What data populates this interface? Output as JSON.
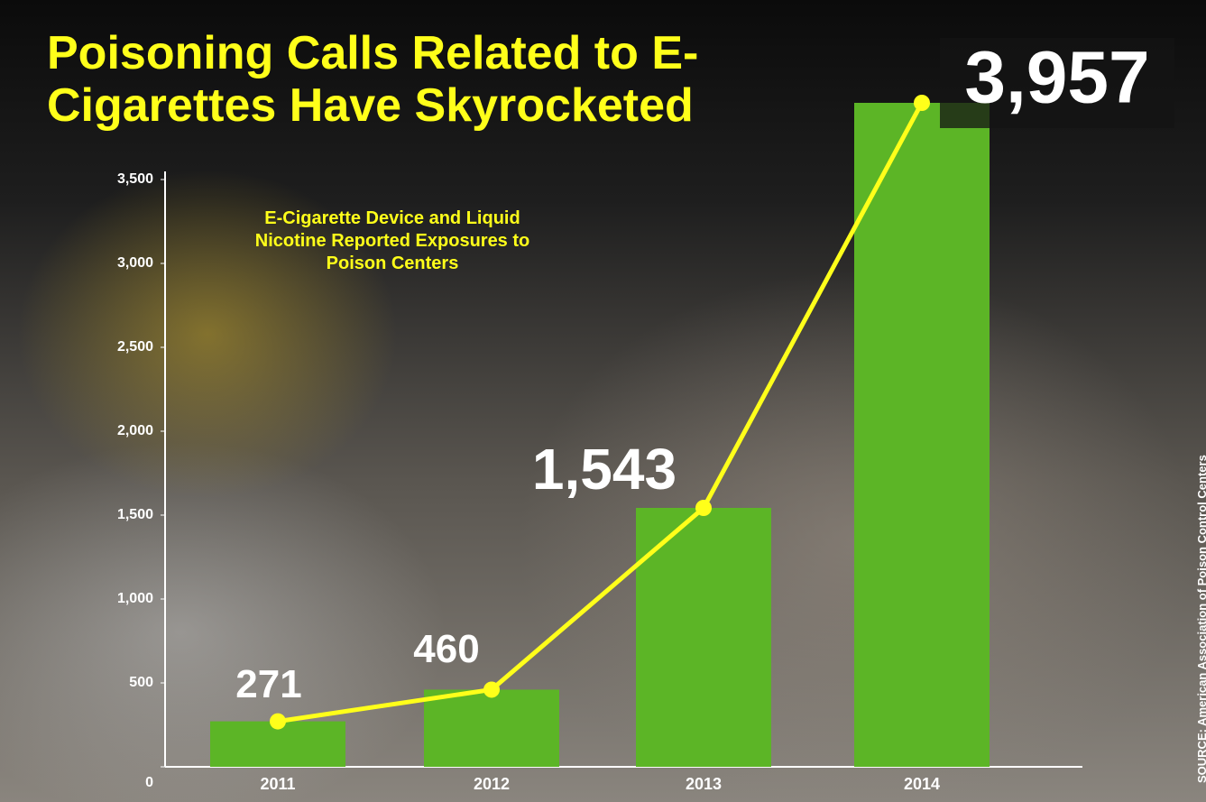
{
  "chart_data": {
    "type": "bar",
    "title": "Poisoning Calls Related to E-Cigarettes Have Skyrocketed",
    "subtitle": "E-Cigarette Device and Liquid Nicotine Reported Exposures to Poison Centers",
    "source": "SOURCE: American Association of Poison Control Centers",
    "categories": [
      "2011",
      "2012",
      "2013",
      "2014"
    ],
    "values": [
      271,
      460,
      1543,
      3957
    ],
    "value_labels": [
      "271",
      "460",
      "1,543",
      "3,957"
    ],
    "color": "#5cb526",
    "line_color": "#ffff1a",
    "ylim": [
      0,
      3500
    ],
    "yticks": [
      0,
      500,
      {
        "value": 1000,
        "label": "1,000"
      },
      {
        "value": 1500,
        "label": "1,500"
      },
      {
        "value": 2000,
        "label": "2,000"
      },
      {
        "value": 2500,
        "label": "2,500"
      },
      {
        "value": 3000,
        "label": "3,000"
      },
      {
        "value": 3500,
        "label": "3,500"
      }
    ]
  }
}
